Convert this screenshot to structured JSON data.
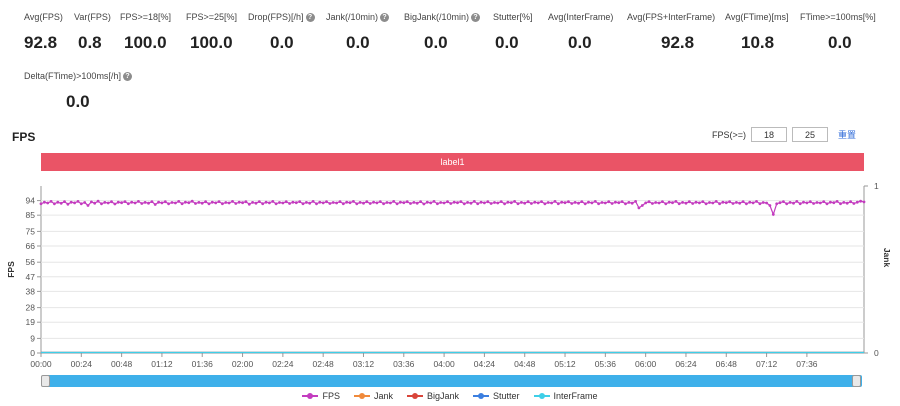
{
  "metrics": [
    {
      "label": "Avg(FPS)",
      "value": "92.8",
      "help": false
    },
    {
      "label": "Var(FPS)",
      "value": "0.8",
      "help": false
    },
    {
      "label": "FPS>=18[%]",
      "value": "100.0",
      "help": false
    },
    {
      "label": "FPS>=25[%]",
      "value": "100.0",
      "help": false
    },
    {
      "label": "Drop(FPS)[/h]",
      "value": "0.0",
      "help": true
    },
    {
      "label": "Jank(/10min)",
      "value": "0.0",
      "help": true
    },
    {
      "label": "BigJank(/10min)",
      "value": "0.0",
      "help": true
    },
    {
      "label": "Stutter[%]",
      "value": "0.0",
      "help": false
    },
    {
      "label": "Avg(InterFrame)",
      "value": "0.0",
      "help": false
    },
    {
      "label": "Avg(FPS+InterFrame)",
      "value": "92.8",
      "help": false
    },
    {
      "label": "Avg(FTime)[ms]",
      "value": "10.8",
      "help": false
    },
    {
      "label": "FTime>=100ms[%]",
      "value": "0.0",
      "help": false
    },
    {
      "label": "Delta(FTime)>100ms[/h]",
      "value": "0.0",
      "help": true
    }
  ],
  "help_glyph": "?",
  "section_title": "FPS",
  "fps_threshold": {
    "label": "FPS(>=)",
    "value1": "18",
    "value2": "25",
    "reset_label": "重置"
  },
  "label_bar": {
    "text": "label1",
    "color": "#ea5466"
  },
  "chart_data": {
    "type": "line",
    "ylabel": "FPS",
    "y2label": "Jank",
    "yticks": [
      "94",
      "85",
      "75",
      "66",
      "56",
      "47",
      "38",
      "28",
      "19",
      "9",
      "0"
    ],
    "y2ticks": [
      "1",
      "0"
    ],
    "xticks": [
      "00:00",
      "00:24",
      "00:48",
      "01:12",
      "01:36",
      "02:00",
      "02:24",
      "02:48",
      "03:12",
      "03:36",
      "04:00",
      "04:24",
      "04:48",
      "05:12",
      "05:36",
      "06:00",
      "06:24",
      "06:48",
      "07:12",
      "07:36"
    ],
    "ylim": [
      0,
      103
    ],
    "y2lim": [
      0,
      1
    ],
    "x_range_seconds": [
      0,
      490
    ],
    "grid": true,
    "series": [
      {
        "name": "FPS",
        "color": "#c33cbf",
        "values_summary": "approximately 93 throughout, ranging 91-94, dips to 89 near 06:00 and 85 near 07:17"
      },
      {
        "name": "Jank",
        "color": "#f08a3b",
        "values_summary": "0 throughout"
      },
      {
        "name": "BigJank",
        "color": "#d9453a",
        "values_summary": "0 throughout"
      },
      {
        "name": "Stutter",
        "color": "#3b7fe0",
        "values_summary": "0 throughout"
      },
      {
        "name": "InterFrame",
        "color": "#3ecfe8",
        "values_summary": "0 throughout"
      }
    ],
    "fps_points": [
      [
        0,
        92
      ],
      [
        2,
        93
      ],
      [
        4,
        92.5
      ],
      [
        6,
        93.5
      ],
      [
        8,
        92
      ],
      [
        10,
        93
      ],
      [
        12,
        92.3
      ],
      [
        14,
        93.4
      ],
      [
        16,
        91.8
      ],
      [
        18,
        93
      ],
      [
        20,
        92.6
      ],
      [
        22,
        93.5
      ],
      [
        24,
        92
      ],
      [
        26,
        92.8
      ],
      [
        28,
        91
      ],
      [
        30,
        93.2
      ],
      [
        32,
        92.4
      ],
      [
        34,
        93.6
      ],
      [
        36,
        92
      ],
      [
        38,
        92.9
      ],
      [
        40,
        92.5
      ],
      [
        42,
        93.3
      ],
      [
        44,
        91.9
      ],
      [
        46,
        93
      ],
      [
        48,
        92.7
      ],
      [
        50,
        93.4
      ],
      [
        52,
        92.1
      ],
      [
        54,
        93
      ],
      [
        56,
        92.5
      ],
      [
        58,
        93.5
      ],
      [
        60,
        92.2
      ],
      [
        62,
        92.9
      ],
      [
        64,
        92.4
      ],
      [
        66,
        93.4
      ],
      [
        68,
        91.6
      ],
      [
        70,
        93
      ],
      [
        72,
        92.6
      ],
      [
        74,
        93.3
      ],
      [
        76,
        92
      ],
      [
        78,
        92.8
      ],
      [
        80,
        92.5
      ],
      [
        82,
        93.5
      ],
      [
        84,
        92.1
      ],
      [
        86,
        93
      ],
      [
        88,
        92.7
      ],
      [
        90,
        93.6
      ],
      [
        92,
        92.2
      ],
      [
        94,
        92.9
      ],
      [
        96,
        92.4
      ],
      [
        98,
        93.3
      ],
      [
        100,
        92
      ],
      [
        102,
        93
      ],
      [
        104,
        92.6
      ],
      [
        106,
        93.4
      ],
      [
        108,
        92.1
      ],
      [
        110,
        92.8
      ],
      [
        112,
        92.5
      ],
      [
        114,
        93.5
      ],
      [
        116,
        92.2
      ],
      [
        118,
        93
      ],
      [
        120,
        92.7
      ],
      [
        122,
        93.3
      ],
      [
        124,
        91.8
      ],
      [
        126,
        92.9
      ],
      [
        128,
        92.4
      ],
      [
        130,
        93.4
      ],
      [
        132,
        92.1
      ],
      [
        134,
        93
      ],
      [
        136,
        92.6
      ],
      [
        138,
        93.5
      ],
      [
        140,
        92
      ],
      [
        142,
        92.8
      ],
      [
        144,
        92.5
      ],
      [
        146,
        93.3
      ],
      [
        148,
        92.2
      ],
      [
        150,
        93
      ],
      [
        152,
        92.7
      ],
      [
        154,
        93.4
      ],
      [
        156,
        92.1
      ],
      [
        158,
        92.9
      ],
      [
        160,
        92.4
      ],
      [
        162,
        93.5
      ],
      [
        164,
        92
      ],
      [
        166,
        93
      ],
      [
        168,
        92.6
      ],
      [
        170,
        93.3
      ],
      [
        172,
        92.2
      ],
      [
        174,
        92.8
      ],
      [
        176,
        92.5
      ],
      [
        178,
        93.4
      ],
      [
        180,
        92.1
      ],
      [
        182,
        93
      ],
      [
        184,
        92.7
      ],
      [
        186,
        93.5
      ],
      [
        188,
        92
      ],
      [
        190,
        92.9
      ],
      [
        192,
        92.4
      ],
      [
        194,
        93.3
      ],
      [
        196,
        92.2
      ],
      [
        198,
        93
      ],
      [
        200,
        92.6
      ],
      [
        202,
        93.4
      ],
      [
        204,
        92.1
      ],
      [
        206,
        92.8
      ],
      [
        208,
        92.5
      ],
      [
        210,
        93.5
      ],
      [
        212,
        92
      ],
      [
        214,
        93
      ],
      [
        216,
        92.7
      ],
      [
        218,
        93.3
      ],
      [
        220,
        92.2
      ],
      [
        222,
        92.9
      ],
      [
        224,
        92.4
      ],
      [
        226,
        93.4
      ],
      [
        228,
        91.9
      ],
      [
        230,
        93
      ],
      [
        232,
        92.6
      ],
      [
        234,
        93.5
      ],
      [
        236,
        92.1
      ],
      [
        238,
        92.8
      ],
      [
        240,
        92.5
      ],
      [
        242,
        93.3
      ],
      [
        244,
        92.2
      ],
      [
        246,
        93
      ],
      [
        248,
        92.7
      ],
      [
        250,
        93.4
      ],
      [
        252,
        92
      ],
      [
        254,
        92.9
      ],
      [
        256,
        92.4
      ],
      [
        258,
        93.5
      ],
      [
        260,
        92.1
      ],
      [
        262,
        93
      ],
      [
        264,
        92.6
      ],
      [
        266,
        93.3
      ],
      [
        268,
        92.2
      ],
      [
        270,
        92.8
      ],
      [
        272,
        92.5
      ],
      [
        274,
        93.4
      ],
      [
        276,
        92
      ],
      [
        278,
        93
      ],
      [
        280,
        92.7
      ],
      [
        282,
        93.5
      ],
      [
        284,
        92.1
      ],
      [
        286,
        92.9
      ],
      [
        288,
        92.4
      ],
      [
        290,
        93.3
      ],
      [
        292,
        92.2
      ],
      [
        294,
        93
      ],
      [
        296,
        92.6
      ],
      [
        298,
        93.4
      ],
      [
        300,
        92
      ],
      [
        302,
        92.8
      ],
      [
        304,
        92.5
      ],
      [
        306,
        93.5
      ],
      [
        308,
        92.1
      ],
      [
        310,
        93
      ],
      [
        312,
        92.7
      ],
      [
        314,
        93.3
      ],
      [
        316,
        92.2
      ],
      [
        318,
        92.9
      ],
      [
        320,
        92.4
      ],
      [
        322,
        93.4
      ],
      [
        324,
        92
      ],
      [
        326,
        93
      ],
      [
        328,
        92.6
      ],
      [
        330,
        93.5
      ],
      [
        332,
        92.1
      ],
      [
        334,
        92.8
      ],
      [
        336,
        92.5
      ],
      [
        338,
        93.3
      ],
      [
        340,
        92.2
      ],
      [
        342,
        93
      ],
      [
        344,
        92.7
      ],
      [
        346,
        93.4
      ],
      [
        348,
        92
      ],
      [
        350,
        92.9
      ],
      [
        352,
        92.4
      ],
      [
        354,
        93.5
      ],
      [
        356,
        89.5
      ],
      [
        358,
        91
      ],
      [
        360,
        92.6
      ],
      [
        362,
        93.3
      ],
      [
        364,
        92.2
      ],
      [
        366,
        92.8
      ],
      [
        368,
        92.5
      ],
      [
        370,
        93.4
      ],
      [
        372,
        92
      ],
      [
        374,
        93
      ],
      [
        376,
        92.7
      ],
      [
        378,
        93.5
      ],
      [
        380,
        92.1
      ],
      [
        382,
        92.9
      ],
      [
        384,
        92.4
      ],
      [
        386,
        93.3
      ],
      [
        388,
        92.2
      ],
      [
        390,
        93
      ],
      [
        392,
        92.6
      ],
      [
        394,
        93.4
      ],
      [
        396,
        92
      ],
      [
        398,
        92.8
      ],
      [
        400,
        92.5
      ],
      [
        402,
        93.5
      ],
      [
        404,
        92.1
      ],
      [
        406,
        93
      ],
      [
        408,
        92.7
      ],
      [
        410,
        93.3
      ],
      [
        412,
        92.2
      ],
      [
        414,
        92.9
      ],
      [
        416,
        92.4
      ],
      [
        418,
        93.4
      ],
      [
        420,
        92
      ],
      [
        422,
        93
      ],
      [
        424,
        92.6
      ],
      [
        426,
        93.5
      ],
      [
        428,
        92.1
      ],
      [
        430,
        92.8
      ],
      [
        432,
        92.5
      ],
      [
        434,
        91
      ],
      [
        436,
        85.5
      ],
      [
        438,
        92
      ],
      [
        440,
        92.7
      ],
      [
        442,
        93.4
      ],
      [
        444,
        92
      ],
      [
        446,
        92.9
      ],
      [
        448,
        92.4
      ],
      [
        450,
        93.5
      ],
      [
        452,
        92.1
      ],
      [
        454,
        93
      ],
      [
        456,
        92.6
      ],
      [
        458,
        93.3
      ],
      [
        460,
        92.2
      ],
      [
        462,
        92.8
      ],
      [
        464,
        92.5
      ],
      [
        466,
        93.4
      ],
      [
        468,
        92
      ],
      [
        470,
        93
      ],
      [
        472,
        92.7
      ],
      [
        474,
        93.5
      ],
      [
        476,
        92.1
      ],
      [
        478,
        92.9
      ],
      [
        480,
        92.4
      ],
      [
        482,
        93.3
      ],
      [
        484,
        92.2
      ],
      [
        486,
        93
      ],
      [
        488,
        93.6
      ],
      [
        490,
        93.2
      ]
    ]
  },
  "legend": [
    {
      "name": "FPS",
      "color": "#c33cbf"
    },
    {
      "name": "Jank",
      "color": "#f08a3b"
    },
    {
      "name": "BigJank",
      "color": "#d9453a"
    },
    {
      "name": "Stutter",
      "color": "#3b7fe0"
    },
    {
      "name": "InterFrame",
      "color": "#3ecfe8"
    }
  ]
}
